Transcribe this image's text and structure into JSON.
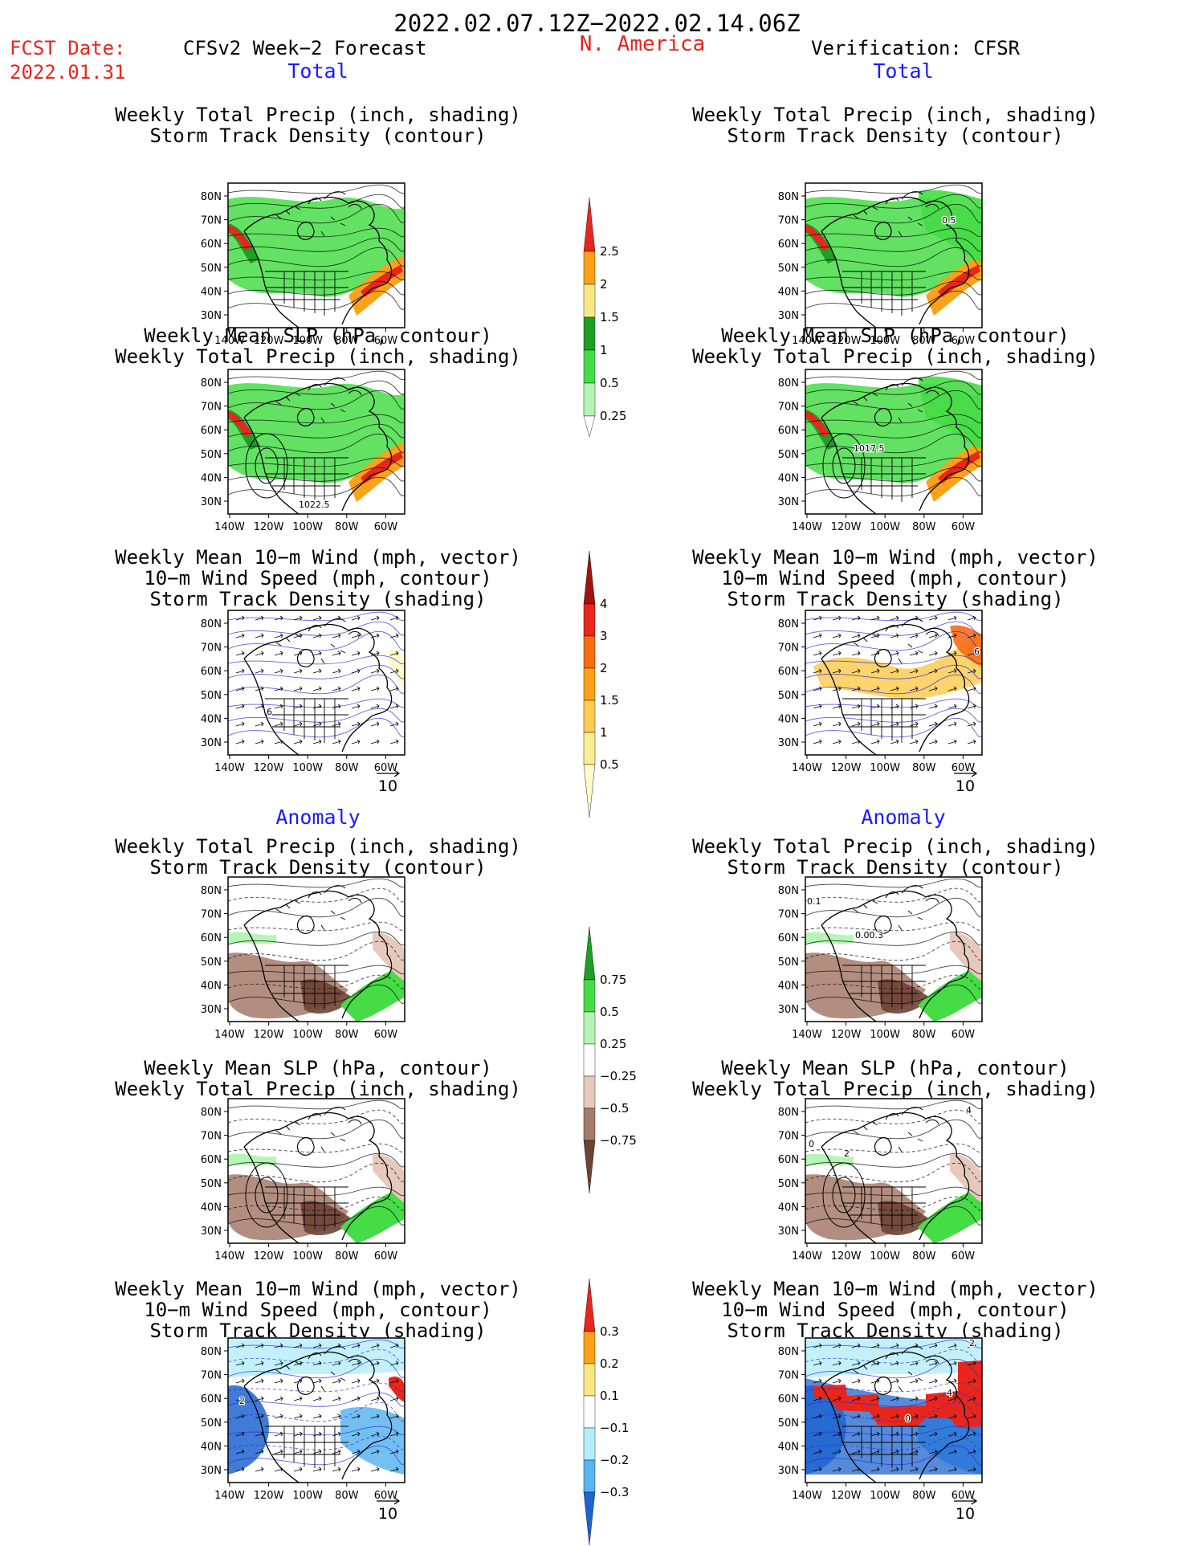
{
  "header": {
    "date_range": "2022.02.07.12Z−2022.02.14.06Z",
    "fcst_label": "FCST Date:",
    "fcst_date": "2022.01.31",
    "left_title": "CFSv2 Week−2 Forecast",
    "region": "N. America",
    "right_title": "Verification: CFSR"
  },
  "sections": {
    "total": "Total",
    "anomaly": "Anomaly"
  },
  "panel_titles": {
    "precip_track": [
      "Weekly Total Precip (inch, shading)",
      "Storm Track Density (contour)"
    ],
    "slp_precip": [
      "Weekly Mean SLP (hPa, contour)",
      "Weekly Total Precip (inch, shading)"
    ],
    "wind_track": [
      "Weekly Mean 10−m Wind (mph, vector)",
      "10−m Wind Speed (mph, contour)",
      "Storm Track Density (shading)"
    ]
  },
  "axes": {
    "lat_labels": [
      "80N",
      "70N",
      "60N",
      "50N",
      "40N",
      "30N"
    ],
    "lon_labels": [
      "140W",
      "120W",
      "100W",
      "80W",
      "60W"
    ]
  },
  "vector_ref": "10",
  "contour_labels": {
    "fcst_slp_total": "1022.5",
    "cfsr_precip_total": "0.5",
    "cfsr_slp_total": "1017.5",
    "fcst_wind_total": "6",
    "cfsr_wind_total": "6",
    "cfsr_precip_anom_1": "0.1",
    "cfsr_precip_anom_2": "0.00.3",
    "cfsr_slp_anom_1": "0",
    "cfsr_slp_anom_2": "2",
    "cfsr_slp_anom_3": "4",
    "cfsr_wind_anom_1": "2",
    "cfsr_wind_anom_2": "4",
    "cfsr_wind_anom_3": "0",
    "fcst_wind_anom_1": "2"
  },
  "colorbars": {
    "precip_total": {
      "labels": [
        "2.5",
        "2",
        "1.5",
        "1",
        "0.5",
        "0.25"
      ],
      "colors": [
        "#e8261d",
        "#fba21a",
        "#fbe684",
        "#1e9e24",
        "#46dc46",
        "#b4f4b4"
      ]
    },
    "track_total": {
      "labels": [
        "4",
        "3",
        "2",
        "1.5",
        "1",
        "0.5"
      ],
      "colors": [
        "#a0140f",
        "#e8261d",
        "#f76c15",
        "#fba21a",
        "#fbcb52",
        "#fbeb94",
        "#fdfbc8"
      ]
    },
    "precip_anom": {
      "labels": [
        "0.75",
        "0.5",
        "0.25",
        "−0.25",
        "−0.5",
        "−0.75"
      ],
      "colors": [
        "#1e9e24",
        "#46dc46",
        "#b4f4b4",
        "#ffffff",
        "#e6c8bc",
        "#a67a6a",
        "#6e4234"
      ]
    },
    "track_anom": {
      "labels": [
        "0.3",
        "0.2",
        "0.1",
        "−0.1",
        "−0.2",
        "−0.3"
      ],
      "colors": [
        "#e8261d",
        "#fba21a",
        "#fbe684",
        "#ffffff",
        "#b4eefa",
        "#5ab4f0",
        "#1e64d0"
      ]
    }
  },
  "colors": {
    "precip_green": "#46dc46",
    "precip_dark_green": "#1e9e24",
    "precip_red": "#e8261d",
    "precip_orange": "#fba21a",
    "dry_brown": "#a67a6a",
    "wind_blue": "#2a2ad8",
    "anom_blue": "#1e64d0",
    "anom_cyan": "#b4eefa"
  }
}
